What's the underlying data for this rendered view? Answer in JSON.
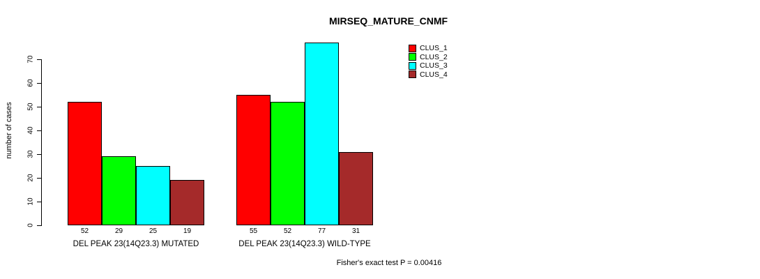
{
  "title": "MIRSEQ_MATURE_CNMF",
  "ylabel": "number of cases",
  "annotation": "Fisher's exact test P = 0.00416",
  "chart_data": {
    "type": "bar",
    "title": "MIRSEQ_MATURE_CNMF",
    "xlabel": "",
    "ylabel": "number of cases",
    "categories": [
      "DEL PEAK 23(14Q23.3) MUTATED",
      "DEL PEAK 23(14Q23.3) WILD-TYPE"
    ],
    "series": [
      {
        "name": "CLUS_1",
        "color": "#ff0000",
        "values": [
          52,
          55
        ]
      },
      {
        "name": "CLUS_2",
        "color": "#00ff00",
        "values": [
          29,
          52
        ]
      },
      {
        "name": "CLUS_3",
        "color": "#00ffff",
        "values": [
          25,
          77
        ]
      },
      {
        "name": "CLUS_4",
        "color": "#a52a2a",
        "values": [
          19,
          31
        ]
      }
    ],
    "ylim": [
      0,
      70
    ],
    "yticks": [
      0,
      10,
      20,
      30,
      40,
      50,
      60,
      70
    ],
    "bar_value_labels": true,
    "grid": false,
    "legend_position": "top-right",
    "annotation": "Fisher's exact test P = 0.00416"
  }
}
